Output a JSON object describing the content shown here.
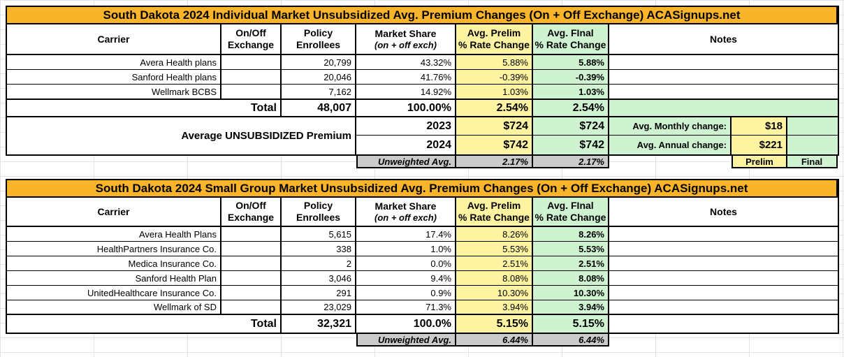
{
  "colors": {
    "title_orange": "#F9B42A",
    "prelim_yellow": "#FDF3A1",
    "final_green": "#CFF2D1",
    "unweighted_gray": "#CBCBCB",
    "border_black": "#000000",
    "gridline_gray": "#E3E3E3"
  },
  "headers": {
    "carrier": "Carrier",
    "exchange_l1": "On/Off",
    "exchange_l2": "Exchange",
    "policy_l1": "Policy",
    "policy_l2": "Enrollees",
    "market_l1": "Market Share",
    "market_l2": "(on + off exch)",
    "prelim_l1": "Avg. Prelim",
    "prelim_l2": "% Rate Change",
    "final_l1": "Avg. FInal",
    "final_l2": "% Rate Change",
    "notes": "Notes"
  },
  "table1": {
    "title": "South Dakota 2024 Individual Market Unsubsidized Avg. Premium Changes (On + Off Exchange) ACASignups.net",
    "rows": [
      {
        "carrier": "Avera Health plans",
        "exchange": "",
        "enrollees": "20,799",
        "share": "43.32%",
        "prelim": "5.88%",
        "final": "5.88%",
        "note": ""
      },
      {
        "carrier": "Sanford Health plans",
        "exchange": "",
        "enrollees": "20,046",
        "share": "41.76%",
        "prelim": "-0.39%",
        "final": "-0.39%",
        "note": ""
      },
      {
        "carrier": "Wellmark BCBS",
        "exchange": "",
        "enrollees": "7,162",
        "share": "14.92%",
        "prelim": "1.03%",
        "final": "1.03%",
        "note": ""
      }
    ],
    "total": {
      "label": "Total",
      "enrollees": "48,007",
      "share": "100.00%",
      "prelim": "2.54%",
      "final": "2.54%",
      "note": ""
    },
    "premium": {
      "label": "Average UNSUBSIDIZED Premium",
      "rows": [
        {
          "year": "2023",
          "prelim": "$724",
          "final": "$724",
          "note_label": "Avg. Monthly change:",
          "note_value": "$18"
        },
        {
          "year": "2024",
          "prelim": "$742",
          "final": "$742",
          "note_label": "Avg. Annual change:",
          "note_value": "$221"
        }
      ]
    },
    "unweighted": {
      "label": "Unweighted Avg.",
      "prelim": "2.17%",
      "final": "2.17%"
    },
    "footer": {
      "prelim_tag": "Prelim",
      "final_tag": "Final"
    }
  },
  "table2": {
    "title": "South Dakota 2024 Small Group Market Unsubsidized Avg. Premium Changes (On + Off Exchange) ACASignups.net",
    "rows": [
      {
        "carrier": "Avera Health Plans",
        "exchange": "",
        "enrollees": "5,615",
        "share": "17.4%",
        "prelim": "8.26%",
        "final": "8.26%",
        "note": ""
      },
      {
        "carrier": "HealthPartners Insurance Co.",
        "exchange": "",
        "enrollees": "338",
        "share": "1.0%",
        "prelim": "5.53%",
        "final": "5.53%",
        "note": ""
      },
      {
        "carrier": "Medica Insurance Co.",
        "exchange": "",
        "enrollees": "2",
        "share": "0.0%",
        "prelim": "2.51%",
        "final": "2.51%",
        "note": ""
      },
      {
        "carrier": "Sanford Health Plan",
        "exchange": "",
        "enrollees": "3,046",
        "share": "9.4%",
        "prelim": "8.08%",
        "final": "8.08%",
        "note": ""
      },
      {
        "carrier": "UnitedHealthcare Insurance Co.",
        "exchange": "",
        "enrollees": "291",
        "share": "0.9%",
        "prelim": "10.30%",
        "final": "10.30%",
        "note": ""
      },
      {
        "carrier": "Wellmark of SD",
        "exchange": "",
        "enrollees": "23,029",
        "share": "71.3%",
        "prelim": "3.94%",
        "final": "3.94%",
        "note": ""
      }
    ],
    "total": {
      "label": "Total",
      "enrollees": "32,321",
      "share": "100.0%",
      "prelim": "5.15%",
      "final": "5.15%",
      "note": ""
    },
    "unweighted": {
      "label": "Unweighted Avg.",
      "prelim": "6.44%",
      "final": "6.44%"
    }
  }
}
